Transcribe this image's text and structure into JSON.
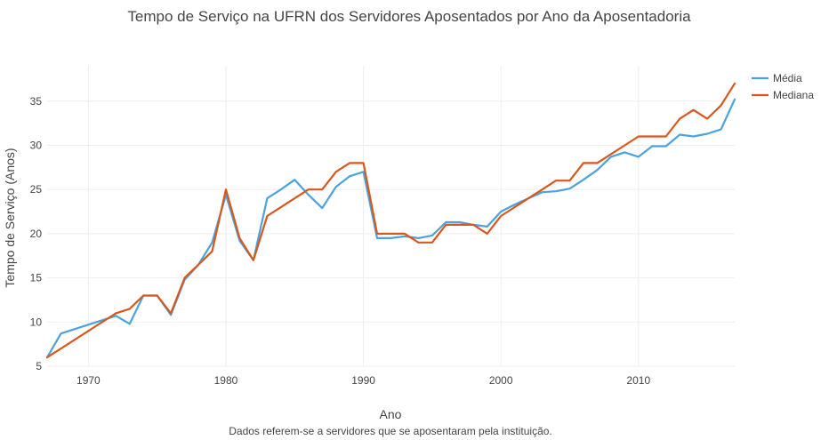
{
  "chart_data": {
    "type": "line",
    "title": "Tempo de Serviço na UFRN dos Servidores Aposentados por Ano da Aposentadoria",
    "xlabel": "Ano",
    "ylabel": "Tempo de Serviço (Anos)",
    "note": "Dados referem-se a servidores que se aposentaram pela instituição.",
    "xlim": [
      1967,
      2017
    ],
    "ylim": [
      5,
      39
    ],
    "x_ticks": [
      "1970",
      "1980",
      "1990",
      "2000",
      "2010"
    ],
    "y_ticks": [
      "5",
      "10",
      "15",
      "20",
      "25",
      "30",
      "35"
    ],
    "grid": true,
    "legend_position": "top-right",
    "series": [
      {
        "name": "Média",
        "color": "#4aa3df",
        "points": [
          [
            1967,
            6.0
          ],
          [
            1968,
            8.7
          ],
          [
            1972,
            10.7
          ],
          [
            1973,
            9.8
          ],
          [
            1974,
            13.0
          ],
          [
            1975,
            13.0
          ],
          [
            1976,
            10.8
          ],
          [
            1977,
            14.8
          ],
          [
            1978,
            16.5
          ],
          [
            1979,
            19.0
          ],
          [
            1980,
            24.4
          ],
          [
            1981,
            19.2
          ],
          [
            1982,
            17.0
          ],
          [
            1983,
            24.0
          ],
          [
            1984,
            25.0
          ],
          [
            1985,
            26.1
          ],
          [
            1986,
            24.4
          ],
          [
            1987,
            22.9
          ],
          [
            1988,
            25.3
          ],
          [
            1989,
            26.5
          ],
          [
            1990,
            27.0
          ],
          [
            1991,
            19.5
          ],
          [
            1992,
            19.5
          ],
          [
            1993,
            19.7
          ],
          [
            1994,
            19.5
          ],
          [
            1995,
            19.8
          ],
          [
            1996,
            21.3
          ],
          [
            1997,
            21.3
          ],
          [
            1998,
            21.0
          ],
          [
            1999,
            20.8
          ],
          [
            2000,
            22.5
          ],
          [
            2001,
            23.3
          ],
          [
            2002,
            24.0
          ],
          [
            2003,
            24.7
          ],
          [
            2004,
            24.8
          ],
          [
            2005,
            25.1
          ],
          [
            2006,
            26.1
          ],
          [
            2007,
            27.2
          ],
          [
            2008,
            28.7
          ],
          [
            2009,
            29.2
          ],
          [
            2010,
            28.7
          ],
          [
            2011,
            29.9
          ],
          [
            2012,
            29.9
          ],
          [
            2013,
            31.2
          ],
          [
            2014,
            31.0
          ],
          [
            2015,
            31.3
          ],
          [
            2016,
            31.8
          ],
          [
            2017,
            35.2
          ]
        ]
      },
      {
        "name": "Mediana",
        "color": "#d9571c",
        "points": [
          [
            1967,
            6.0
          ],
          [
            1972,
            11.0
          ],
          [
            1973,
            11.5
          ],
          [
            1974,
            13.0
          ],
          [
            1975,
            13.0
          ],
          [
            1976,
            11.0
          ],
          [
            1977,
            15.0
          ],
          [
            1978,
            16.5
          ],
          [
            1979,
            18.0
          ],
          [
            1980,
            25.0
          ],
          [
            1981,
            19.5
          ],
          [
            1982,
            17.0
          ],
          [
            1983,
            22.0
          ],
          [
            1984,
            23.0
          ],
          [
            1985,
            24.0
          ],
          [
            1986,
            25.0
          ],
          [
            1987,
            25.0
          ],
          [
            1988,
            27.0
          ],
          [
            1989,
            28.0
          ],
          [
            1990,
            28.0
          ],
          [
            1991,
            20.0
          ],
          [
            1992,
            20.0
          ],
          [
            1993,
            20.0
          ],
          [
            1994,
            19.0
          ],
          [
            1995,
            19.0
          ],
          [
            1996,
            21.0
          ],
          [
            1997,
            21.0
          ],
          [
            1998,
            21.0
          ],
          [
            1999,
            20.0
          ],
          [
            2000,
            22.0
          ],
          [
            2001,
            23.0
          ],
          [
            2002,
            24.0
          ],
          [
            2003,
            25.0
          ],
          [
            2004,
            26.0
          ],
          [
            2005,
            26.0
          ],
          [
            2006,
            28.0
          ],
          [
            2007,
            28.0
          ],
          [
            2008,
            29.0
          ],
          [
            2009,
            30.0
          ],
          [
            2010,
            31.0
          ],
          [
            2011,
            31.0
          ],
          [
            2012,
            31.0
          ],
          [
            2013,
            33.0
          ],
          [
            2014,
            34.0
          ],
          [
            2015,
            33.0
          ],
          [
            2016,
            34.5
          ],
          [
            2017,
            37.0
          ]
        ]
      }
    ]
  }
}
